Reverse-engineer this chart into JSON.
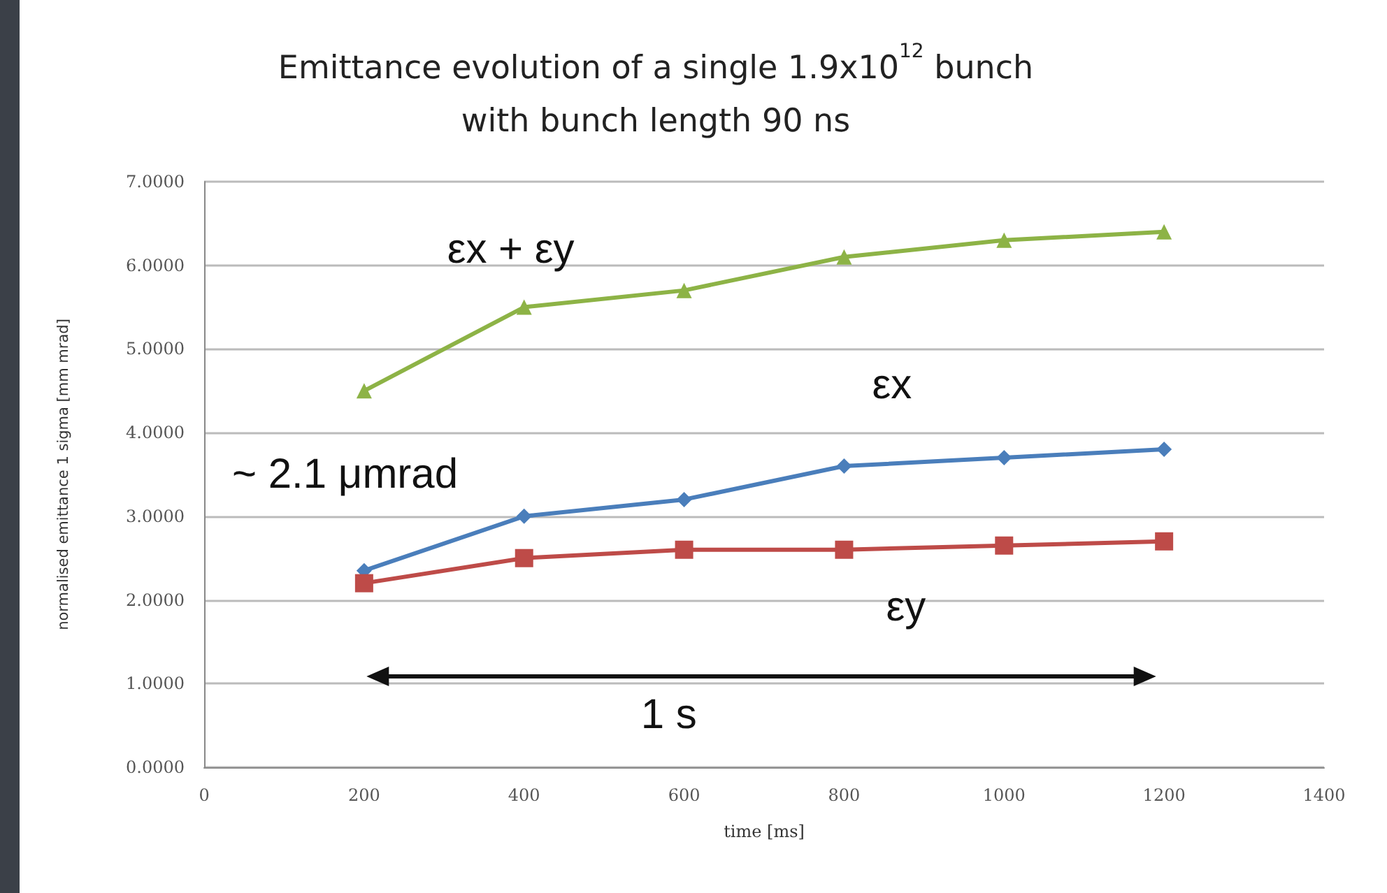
{
  "chart_data": {
    "type": "line",
    "title": "Emittance evolution of a single 1.9x10$^{12}$ bunch\nwith bunch length 90 ns",
    "xlabel": "time [ms]",
    "ylabel": "normalised emittance 1 sigma [mm mrad]",
    "x": [
      200,
      400,
      600,
      800,
      1000,
      1200
    ],
    "series": [
      {
        "name": "εx + εy",
        "color": "#8db346",
        "marker": "triangle",
        "values": [
          4.5,
          5.5,
          5.7,
          6.1,
          6.3,
          6.4
        ]
      },
      {
        "name": "εx",
        "color": "#4a7ebb",
        "marker": "diamond",
        "values": [
          2.35,
          3.0,
          3.2,
          3.6,
          3.7,
          3.8
        ]
      },
      {
        "name": "εy",
        "color": "#be4b48",
        "marker": "square",
        "values": [
          2.2,
          2.5,
          2.6,
          2.6,
          2.65,
          2.7
        ]
      }
    ],
    "xlim": [
      0,
      1400
    ],
    "xticks": [
      0,
      200,
      400,
      600,
      800,
      1000,
      1200,
      1400
    ],
    "ylim": [
      0,
      7
    ],
    "yticks": [
      {
        "value": 0,
        "label": "0.0000"
      },
      {
        "value": 1,
        "label": "1.0000"
      },
      {
        "value": 2,
        "label": "2.0000"
      },
      {
        "value": 3,
        "label": "3.0000"
      },
      {
        "value": 4,
        "label": "4.0000"
      },
      {
        "value": 5,
        "label": "5.0000"
      },
      {
        "value": 6,
        "label": "6.0000"
      },
      {
        "value": 7,
        "label": "7.0000"
      }
    ],
    "grid": "y",
    "legend": false,
    "line_style": "solid",
    "annotations": [
      "~ 2.1 μmrad",
      "1 s"
    ]
  }
}
